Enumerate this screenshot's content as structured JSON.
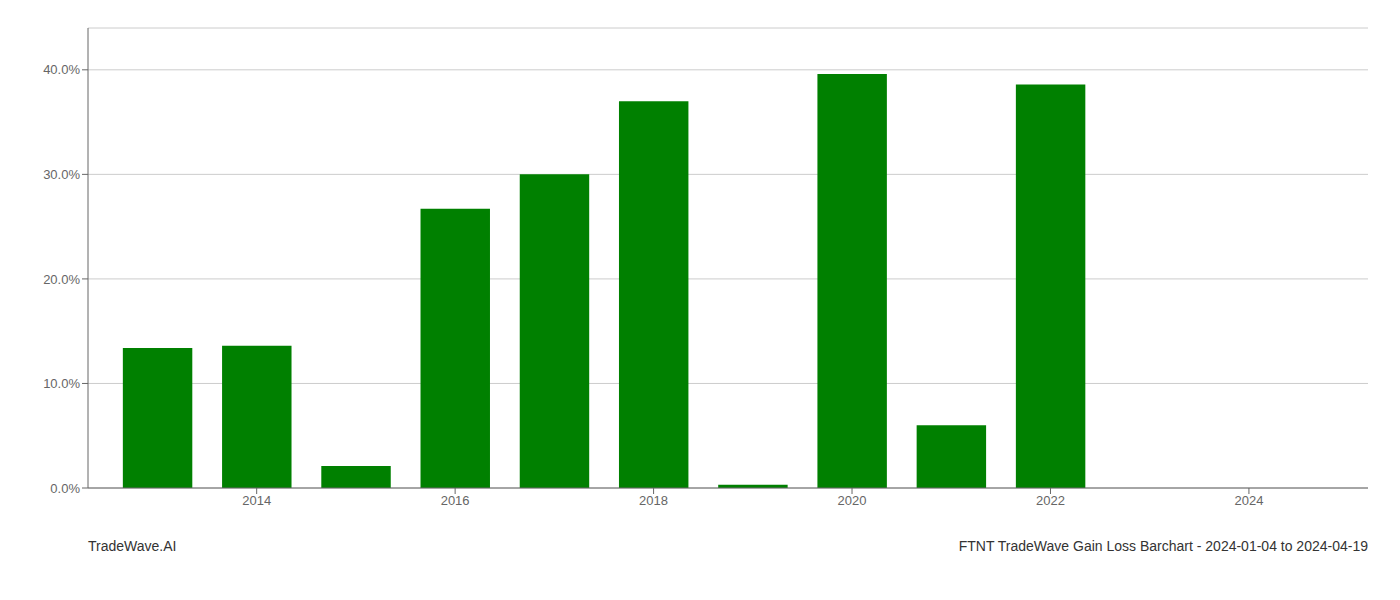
{
  "chart_data": {
    "type": "bar",
    "title": "FTNT TradeWave Gain Loss Barchart - 2024-01-04 to 2024-04-19",
    "annotations": [
      "TradeWave.AI"
    ],
    "x": [
      2013,
      2014,
      2015,
      2016,
      2017,
      2018,
      2019,
      2020,
      2021,
      2022,
      2023,
      2024
    ],
    "values": [
      0.134,
      0.136,
      0.021,
      0.267,
      0.3,
      0.37,
      0.003,
      0.396,
      0.06,
      0.386,
      0.0,
      0.0
    ],
    "color": "#008000",
    "xlim": [
      2012.3,
      2025.2
    ],
    "xticks": [
      2014,
      2016,
      2018,
      2020,
      2022,
      2024
    ],
    "ylim": [
      0,
      0.44
    ],
    "yticks": [
      {
        "value": 0.0,
        "label": "0.0%"
      },
      {
        "value": 0.1,
        "label": "10.0%"
      },
      {
        "value": 0.2,
        "label": "20.0%"
      },
      {
        "value": 0.3,
        "label": "30.0%"
      },
      {
        "value": 0.4,
        "label": "40.0%"
      }
    ],
    "grid": true
  }
}
